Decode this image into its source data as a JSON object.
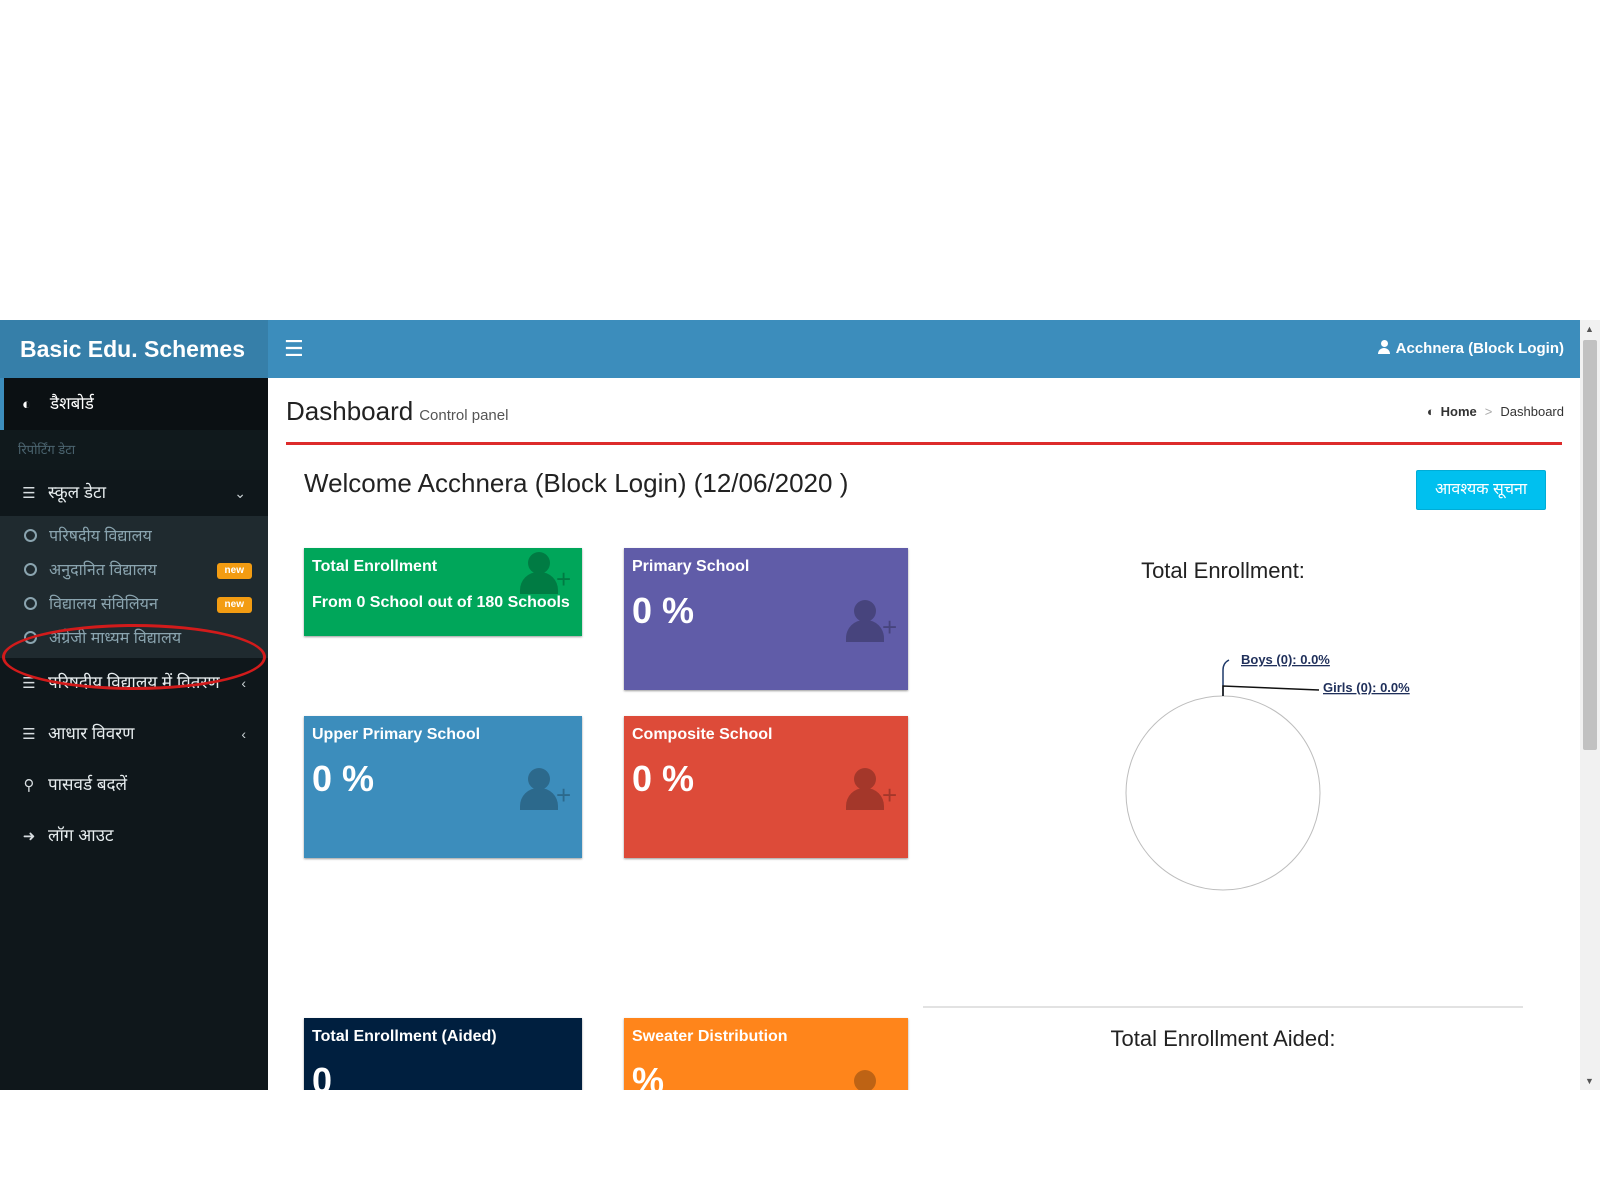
{
  "app": {
    "logo": "Basic Edu. Schemes",
    "user": "Acchnera (Block Login)"
  },
  "sidebar": {
    "active_item": "डैशबोर्ड",
    "section_header": "रिपोर्टिंग डेटा",
    "school_data": "स्कूल डेटा",
    "sub_items": [
      {
        "label": "परिषदीय विद्यालय",
        "badge": ""
      },
      {
        "label": "अनुदानित विद्यालय",
        "badge": "new"
      },
      {
        "label": "विद्यालय संविलियन",
        "badge": "new"
      },
      {
        "label": "अंग्रेजी माध्यम विद्यालय",
        "badge": ""
      }
    ],
    "distribution": "परिषदीय विद्यालय में वितरण",
    "aadhar": "आधार विवरण",
    "change_password": "पासवर्ड बदलें",
    "logout": "लॉग आउट"
  },
  "content": {
    "title": "Dashboard",
    "subtitle": "Control panel",
    "breadcrumb": {
      "home": "Home",
      "current": "Dashboard"
    },
    "welcome": "Welcome Acchnera (Block Login) (12/06/2020 )",
    "notice_button": "आवश्यक सूचना"
  },
  "boxes": {
    "total_enrollment": {
      "title": "Total Enrollment",
      "sub": "From 0 School out of 180 Schools",
      "color": "#00a65a"
    },
    "primary_school": {
      "title": "Primary School",
      "value": "0 %",
      "color": "#605ca8"
    },
    "upper_primary": {
      "title": "Upper Primary School",
      "value": "0 %",
      "color": "#3c8dbc"
    },
    "composite": {
      "title": "Composite School",
      "value": "0 %",
      "color": "#dd4b39"
    },
    "aided": {
      "title": "Total Enrollment (Aided)",
      "value": "0",
      "color": "#001f3f"
    },
    "sweater": {
      "title": "Sweater Distribution",
      "value": "%",
      "color": "#ff851b"
    }
  },
  "charts": {
    "enrollment_title": "Total Enrollment:",
    "aided_title": "Total Enrollment Aided:"
  },
  "chart_data": {
    "type": "pie",
    "title": "Total Enrollment:",
    "categories": [
      "Boys",
      "Girls"
    ],
    "values": [
      0,
      0
    ],
    "labels": [
      "Boys (0): 0.0%",
      "Girls (0): 0.0%"
    ]
  }
}
